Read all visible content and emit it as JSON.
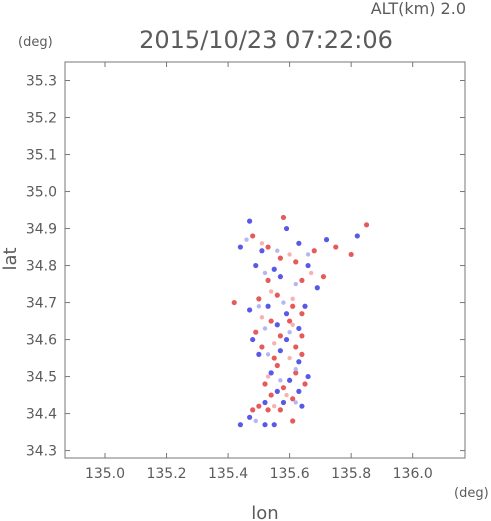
{
  "chart_data": {
    "type": "scatter",
    "title": "2015/10/23 07:22:06",
    "subtitle": "ALT(km) 2.0",
    "xlabel": "lon",
    "ylabel": "lat",
    "x_unit": "(deg)",
    "y_unit": "(deg)",
    "xlim": [
      134.87,
      136.17
    ],
    "ylim": [
      34.28,
      35.35
    ],
    "x_ticks": [
      135.0,
      135.2,
      135.4,
      135.6,
      135.8,
      136.0
    ],
    "x_tick_labels": [
      "135.0",
      "135.2",
      "135.4",
      "135.6",
      "135.8",
      "136.0"
    ],
    "y_ticks": [
      34.3,
      34.4,
      34.5,
      34.6,
      34.7,
      34.8,
      34.9,
      35.0,
      35.1,
      35.2,
      35.3
    ],
    "y_tick_labels": [
      "34.3",
      "34.4",
      "34.5",
      "34.6",
      "34.7",
      "34.8",
      "34.9",
      "35.0",
      "35.1",
      "35.2",
      "35.3"
    ],
    "grid": false,
    "colors": {
      "positive": "#e34848",
      "negative": "#4747e6",
      "axis": "#777777",
      "text": "#5b5b5b"
    },
    "series": [
      {
        "color": "positive",
        "points": [
          [
            135.58,
            34.93
          ],
          [
            135.48,
            34.88
          ],
          [
            135.53,
            34.85
          ],
          [
            135.68,
            34.84
          ],
          [
            135.75,
            34.85
          ],
          [
            135.8,
            34.83
          ],
          [
            135.57,
            34.82
          ],
          [
            135.62,
            34.81
          ],
          [
            135.53,
            34.76
          ],
          [
            135.64,
            34.76
          ],
          [
            135.71,
            34.77
          ],
          [
            135.42,
            34.7
          ],
          [
            135.5,
            34.71
          ],
          [
            135.56,
            34.72
          ],
          [
            135.61,
            34.69
          ],
          [
            135.64,
            34.67
          ],
          [
            135.54,
            34.65
          ],
          [
            135.6,
            34.65
          ],
          [
            135.49,
            34.62
          ],
          [
            135.57,
            34.61
          ],
          [
            135.64,
            34.61
          ],
          [
            135.51,
            34.58
          ],
          [
            135.62,
            34.58
          ],
          [
            135.55,
            34.55
          ],
          [
            135.64,
            34.56
          ],
          [
            135.56,
            34.53
          ],
          [
            135.62,
            34.51
          ],
          [
            135.52,
            34.48
          ],
          [
            135.58,
            34.47
          ],
          [
            135.65,
            34.48
          ],
          [
            135.54,
            34.45
          ],
          [
            135.61,
            34.44
          ],
          [
            135.5,
            34.42
          ],
          [
            135.57,
            34.41
          ],
          [
            135.48,
            34.41
          ],
          [
            135.53,
            34.41
          ],
          [
            135.61,
            34.38
          ],
          [
            135.85,
            34.91
          ]
        ]
      },
      {
        "color": "negative",
        "points": [
          [
            135.47,
            34.92
          ],
          [
            135.59,
            34.9
          ],
          [
            135.44,
            34.85
          ],
          [
            135.51,
            34.84
          ],
          [
            135.63,
            34.86
          ],
          [
            135.72,
            34.87
          ],
          [
            135.49,
            34.8
          ],
          [
            135.55,
            34.79
          ],
          [
            135.66,
            34.8
          ],
          [
            135.57,
            34.77
          ],
          [
            135.69,
            34.74
          ],
          [
            135.47,
            34.68
          ],
          [
            135.53,
            34.69
          ],
          [
            135.59,
            34.67
          ],
          [
            135.65,
            34.69
          ],
          [
            135.56,
            34.64
          ],
          [
            135.63,
            34.63
          ],
          [
            135.48,
            34.6
          ],
          [
            135.59,
            34.6
          ],
          [
            135.5,
            34.56
          ],
          [
            135.57,
            34.57
          ],
          [
            135.63,
            34.54
          ],
          [
            135.54,
            34.51
          ],
          [
            135.6,
            34.49
          ],
          [
            135.66,
            34.5
          ],
          [
            135.56,
            34.46
          ],
          [
            135.63,
            34.46
          ],
          [
            135.52,
            34.43
          ],
          [
            135.58,
            34.43
          ],
          [
            135.64,
            34.42
          ],
          [
            135.47,
            34.39
          ],
          [
            135.52,
            34.37
          ],
          [
            135.55,
            34.37
          ],
          [
            135.44,
            34.37
          ],
          [
            135.82,
            34.88
          ]
        ]
      },
      {
        "color": "light-positive",
        "points": [
          [
            135.51,
            34.86
          ],
          [
            135.6,
            34.83
          ],
          [
            135.67,
            34.78
          ],
          [
            135.54,
            34.73
          ],
          [
            135.61,
            34.71
          ],
          [
            135.51,
            34.66
          ],
          [
            135.61,
            34.64
          ],
          [
            135.55,
            34.59
          ],
          [
            135.6,
            34.55
          ],
          [
            135.53,
            34.5
          ],
          [
            135.59,
            34.45
          ],
          [
            135.55,
            34.42
          ]
        ]
      },
      {
        "color": "light-negative",
        "points": [
          [
            135.46,
            34.87
          ],
          [
            135.56,
            34.84
          ],
          [
            135.66,
            34.83
          ],
          [
            135.52,
            34.78
          ],
          [
            135.62,
            34.75
          ],
          [
            135.5,
            34.69
          ],
          [
            135.58,
            34.7
          ],
          [
            135.52,
            34.63
          ],
          [
            135.6,
            34.62
          ],
          [
            135.53,
            34.56
          ],
          [
            135.62,
            34.52
          ],
          [
            135.57,
            34.49
          ],
          [
            135.62,
            34.43
          ],
          [
            135.49,
            34.38
          ]
        ]
      }
    ]
  }
}
